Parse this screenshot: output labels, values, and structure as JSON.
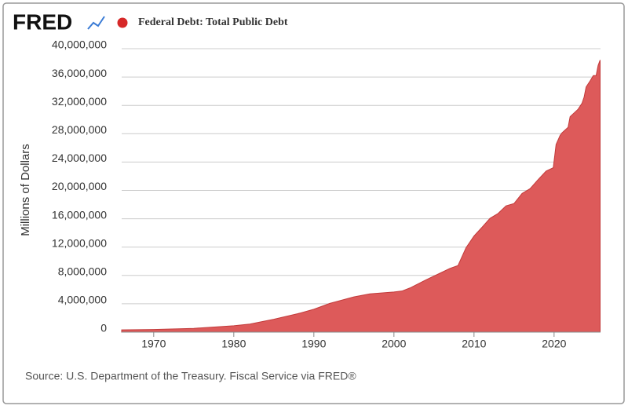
{
  "chart_data": {
    "type": "area",
    "logo": "FRED",
    "title": "Federal Debt: Total Public Debt",
    "ylabel": "Millions of Dollars",
    "source": "Source: U.S. Department of the Treasury. Fiscal Service via FRED®",
    "x": [
      1966,
      1970,
      1975,
      1980,
      1982,
      1985,
      1988,
      1990,
      1992,
      1995,
      1997,
      2000,
      2001,
      2002,
      2004,
      2006,
      2007,
      2008,
      2009,
      2010,
      2011,
      2012,
      2013,
      2014,
      2015,
      2016,
      2017,
      2018,
      2019,
      2019.9,
      2020.25,
      2020.75,
      2021,
      2021.75,
      2022,
      2023,
      2023.5,
      2023.75,
      2024,
      2024.5,
      2024.9,
      2025.25,
      2025.5,
      2025.75
    ],
    "series": [
      {
        "name": "Federal Debt: Total Public Debt",
        "color": "#dd5a5a",
        "line_color": "#c23b3b",
        "values": [
          320000,
          380000,
          530000,
          900000,
          1140000,
          1820000,
          2600000,
          3230000,
          4060000,
          4970000,
          5400000,
          5660000,
          5800000,
          6230000,
          7380000,
          8450000,
          9000000,
          9400000,
          11900000,
          13560000,
          14790000,
          16060000,
          16740000,
          17820000,
          18150000,
          19570000,
          20240000,
          21520000,
          22720000,
          23200000,
          26480000,
          27750000,
          28130000,
          28910000,
          30400000,
          31460000,
          32330000,
          33170000,
          34590000,
          35460000,
          36200000,
          36210000,
          37640000,
          38400000
        ]
      }
    ],
    "xlim": [
      1966,
      2025.8
    ],
    "xticks": [
      1970,
      1980,
      1990,
      2000,
      2010,
      2020
    ],
    "ylim": [
      0,
      40000000
    ],
    "yticks": [
      0,
      {
        "value": 4000000,
        "label": "4,000,000"
      },
      {
        "value": 8000000,
        "label": "8,000,000"
      },
      {
        "value": 12000000,
        "label": "12,000,000"
      },
      {
        "value": 16000000,
        "label": "16,000,000"
      },
      {
        "value": 20000000,
        "label": "20,000,000"
      },
      {
        "value": 24000000,
        "label": "24,000,000"
      },
      {
        "value": 28000000,
        "label": "28,000,000"
      },
      {
        "value": 32000000,
        "label": "32,000,000"
      },
      {
        "value": 36000000,
        "label": "36,000,000"
      },
      {
        "value": 40000000,
        "label": "40,000,000"
      }
    ],
    "grid": true
  }
}
